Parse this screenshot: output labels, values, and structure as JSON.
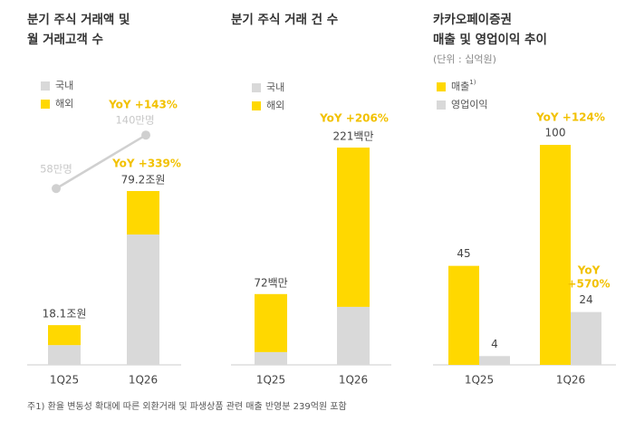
{
  "chart_data": [
    {
      "type": "bar",
      "stacked": true,
      "title": [
        "분기 주식 거래액 및",
        "월 거래고객 수"
      ],
      "categories": [
        "1Q25",
        "1Q26"
      ],
      "series": [
        {
          "name": "국내",
          "color": "#d9d9d9",
          "values": [
            9.0,
            59.4
          ]
        },
        {
          "name": "해외",
          "color": "#ffd800",
          "values": [
            9.1,
            19.8
          ]
        }
      ],
      "totals": [
        18.1,
        79.2
      ],
      "total_labels": [
        "18.1조원",
        "79.2조원"
      ],
      "line": {
        "color": "#d0d0d0",
        "values": [
          58,
          140
        ],
        "value_labels": [
          "58만명",
          "140만명"
        ]
      },
      "annotations": [
        "YoY +143%",
        "YoY +339%"
      ]
    },
    {
      "type": "bar",
      "stacked": true,
      "title": [
        "분기 주식 거래 건 수"
      ],
      "categories": [
        "1Q25",
        "1Q26"
      ],
      "series": [
        {
          "name": "국내",
          "color": "#d9d9d9",
          "values": [
            13,
            59
          ]
        },
        {
          "name": "해외",
          "color": "#ffd800",
          "values": [
            59,
            162
          ]
        }
      ],
      "totals": [
        72,
        221
      ],
      "total_labels": [
        "72백만",
        "221백만"
      ],
      "annotations": [
        "YoY +206%"
      ]
    },
    {
      "type": "bar",
      "stacked": false,
      "title": [
        "카카오페이증권",
        "매출 및 영업이익 추이"
      ],
      "subtitle": "(단위 : 십억원)",
      "categories": [
        "1Q25",
        "1Q26"
      ],
      "series": [
        {
          "name": "매출",
          "footnote_mark": "1)",
          "color": "#ffd800",
          "values": [
            45,
            100
          ]
        },
        {
          "name": "영업이익",
          "color": "#d9d9d9",
          "values": [
            4,
            24
          ]
        }
      ],
      "annotations": [
        "YoY +124%",
        [
          "YoY",
          "+570%"
        ]
      ]
    }
  ],
  "footnote": "주1) 환율 변동성 확대에 따른 외환거래 및 파생상품 관련 매출 반영분 239억원 포함"
}
